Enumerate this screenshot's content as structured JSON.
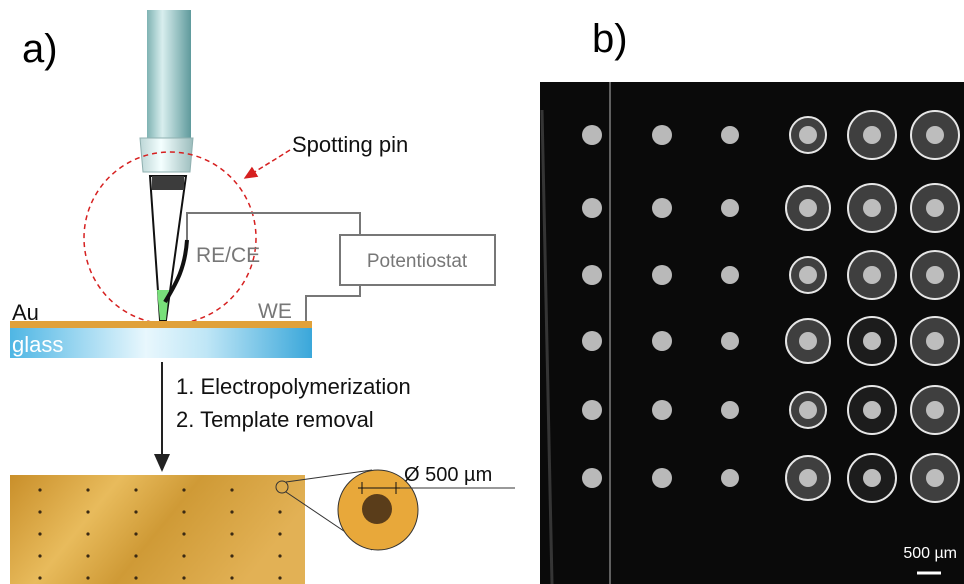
{
  "panel_a": {
    "label": "a)",
    "spotting_pin": "Spotting pin",
    "reference_electrode": "RE/CE",
    "potentiostat": "Potentiostat",
    "working_electrode": "WE",
    "gold_layer": "Au",
    "substrate": "glass",
    "steps": [
      "1. Electropolymerization",
      "2. Template removal"
    ],
    "spot_diameter": "Ø 500 µm"
  },
  "panel_b": {
    "label": "b)",
    "scale_bar": "500 µm"
  }
}
